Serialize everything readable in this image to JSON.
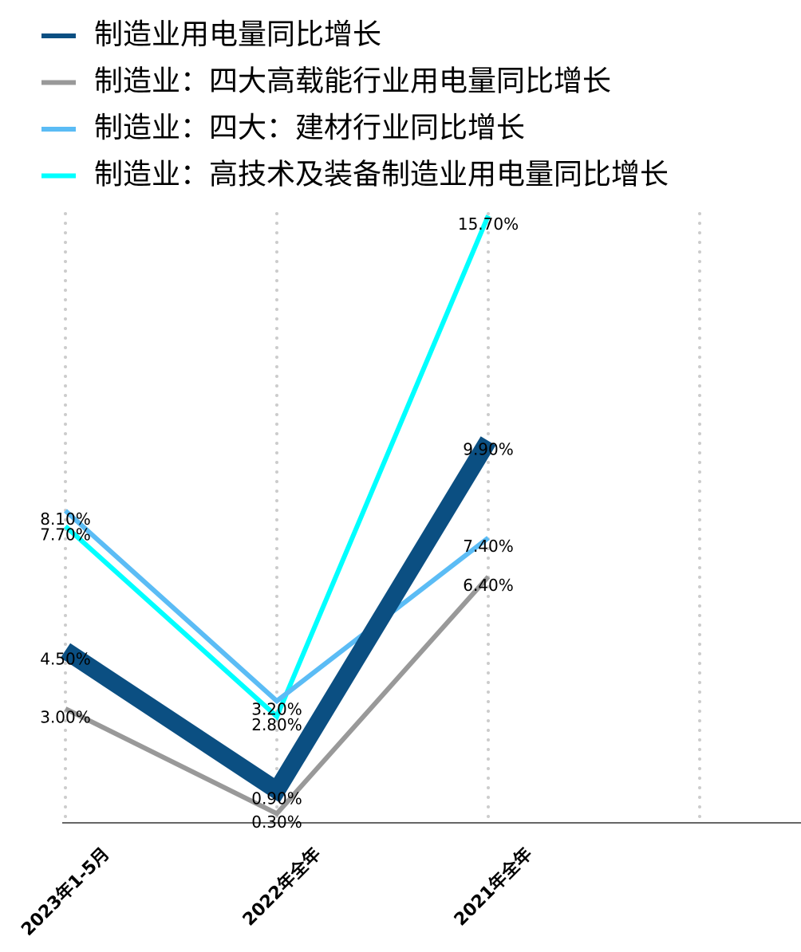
{
  "chart_data": {
    "type": "line",
    "categories": [
      "2023年1-5月",
      "2022年全年",
      "2021年全年",
      null
    ],
    "series": [
      {
        "name": "制造业用电量同比增长",
        "color": "#0b4f82",
        "values": [
          4.5,
          0.9,
          9.9,
          null
        ],
        "value_labels": [
          "4.50%",
          "0.90%",
          "9.90%",
          null
        ]
      },
      {
        "name": "制造业：四大高载能行业用电量同比增长",
        "color": "#999999",
        "values": [
          3.0,
          0.3,
          6.4,
          null
        ],
        "value_labels": [
          "3.00%",
          "0.30%",
          "6.40%",
          null
        ]
      },
      {
        "name": "制造业：四大：建材行业同比增长",
        "color": "#5bbcf5",
        "values": [
          8.1,
          3.2,
          7.4,
          null
        ],
        "value_labels": [
          "8.10%",
          "3.20%",
          "7.40%",
          null
        ]
      },
      {
        "name": "制造业：高技术及装备制造业用电量同比增长",
        "color": "#00ffff",
        "values": [
          7.7,
          2.8,
          15.7,
          null
        ],
        "value_labels": [
          "7.70%",
          "2.80%",
          "15.70%",
          null
        ]
      }
    ],
    "ylim": [
      0,
      16.1
    ],
    "grid": true,
    "legend": "top"
  }
}
